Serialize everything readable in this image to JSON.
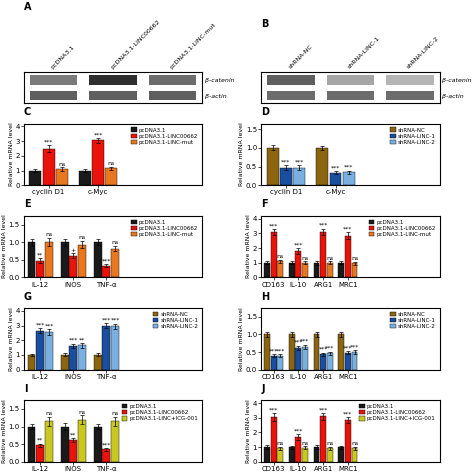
{
  "chart_data": [
    {
      "type": "heatmap",
      "title": "A",
      "x": [
        "pcDNA3.1",
        "pcDNA3.1-LINC00662",
        "pcDNA3.1-LINC-mut"
      ],
      "y": [
        "β-catenin",
        "β-actin"
      ],
      "values": [
        [
          0.6,
          0.85,
          0.65
        ],
        [
          0.7,
          0.7,
          0.7
        ]
      ]
    },
    {
      "type": "heatmap",
      "title": "B",
      "x": [
        "shRNA-NC",
        "shRNA-LINC-1",
        "shRNA-LINC-2"
      ],
      "y": [
        "β-catenin",
        "β-actin"
      ],
      "values": [
        [
          0.7,
          0.45,
          0.4
        ],
        [
          0.65,
          0.65,
          0.65
        ]
      ]
    },
    {
      "type": "bar",
      "title": "C",
      "ylabel": "Relative mRNA level",
      "categories": [
        "cyclin D1",
        "c-Myc"
      ],
      "series": [
        {
          "name": "pcDNA3.1",
          "color": "#1a1a1a",
          "values": [
            1.0,
            1.0
          ],
          "errors": [
            0.08,
            0.08
          ]
        },
        {
          "name": "pcDNA3.1-LINC00662",
          "color": "#e8130a",
          "values": [
            2.5,
            3.05
          ],
          "errors": [
            0.25,
            0.18
          ],
          "annotations": [
            "***",
            "***"
          ]
        },
        {
          "name": "pcDNA3.1-LINC-mut",
          "color": "#e87820",
          "values": [
            1.1,
            1.15
          ],
          "errors": [
            0.12,
            0.12
          ],
          "annotations": [
            "ns",
            "ns"
          ]
        }
      ],
      "ylim": [
        0,
        4.2
      ],
      "yticks": [
        0,
        1,
        2,
        3,
        4
      ],
      "legend": "upper right"
    },
    {
      "type": "bar",
      "title": "D",
      "ylabel": "Relative mRNA level",
      "categories": [
        "cyclin D1",
        "c-Myc"
      ],
      "series": [
        {
          "name": "shRNA-NC",
          "color": "#8B6510",
          "values": [
            1.0,
            1.0
          ],
          "errors": [
            0.07,
            0.06
          ]
        },
        {
          "name": "shRNA-LINC-1",
          "color": "#1a4fa0",
          "values": [
            0.47,
            0.33
          ],
          "errors": [
            0.06,
            0.04
          ],
          "annotations": [
            "***",
            "***"
          ]
        },
        {
          "name": "shRNA-LINC-2",
          "color": "#7ab0e0",
          "values": [
            0.47,
            0.35
          ],
          "errors": [
            0.06,
            0.04
          ],
          "annotations": [
            "***",
            "***"
          ]
        }
      ],
      "ylim": [
        0,
        1.65
      ],
      "yticks": [
        {
          "value": 0,
          "label": "0.0"
        },
        0.5,
        {
          "value": 1,
          "label": "1.0"
        },
        1.5
      ],
      "legend": "upper right"
    },
    {
      "type": "bar",
      "title": "E",
      "ylabel": "Relative mRNA level",
      "categories": [
        "IL-12",
        "iNOS",
        "TNF-α"
      ],
      "series": [
        {
          "name": "pcDNA3.1",
          "color": "#1a1a1a",
          "values": [
            1.0,
            1.0,
            1.0
          ],
          "errors": [
            0.1,
            0.1,
            0.08
          ]
        },
        {
          "name": "pcDNA3.1-LINC00662",
          "color": "#e8130a",
          "values": [
            0.48,
            0.62,
            0.33
          ],
          "errors": [
            0.06,
            0.06,
            0.04
          ],
          "annotations": [
            "**",
            "+",
            "***"
          ]
        },
        {
          "name": "pcDNA3.1-LINC-mut",
          "color": "#e87820",
          "values": [
            1.0,
            0.93,
            0.82
          ],
          "errors": [
            0.12,
            0.1,
            0.08
          ],
          "annotations": [
            "ns",
            "ns",
            "ns"
          ]
        }
      ],
      "ylim": [
        0,
        1.75
      ],
      "yticks": [
        {
          "value": 0,
          "label": "0.0"
        },
        0.5,
        {
          "value": 1,
          "label": "1.0"
        },
        1.5
      ],
      "legend": "upper right"
    },
    {
      "type": "bar",
      "title": "F",
      "ylabel": "Relative mRNA level",
      "categories": [
        "CD163",
        "IL-10",
        "ARG1",
        "MRC1"
      ],
      "series": [
        {
          "name": "pcDNA3.1",
          "color": "#1a1a1a",
          "values": [
            1.0,
            1.0,
            1.0,
            1.0
          ],
          "errors": [
            0.1,
            0.1,
            0.12,
            0.1
          ]
        },
        {
          "name": "pcDNA3.1-LINC00662",
          "color": "#e8130a",
          "values": [
            3.1,
            1.8,
            3.1,
            2.85
          ],
          "errors": [
            0.2,
            0.2,
            0.22,
            0.22
          ],
          "annotations": [
            "***",
            "***",
            "***",
            "***"
          ]
        },
        {
          "name": "pcDNA3.1-LINC-mut",
          "color": "#e87820",
          "values": [
            1.1,
            1.0,
            1.0,
            0.95
          ],
          "errors": [
            0.12,
            0.1,
            0.1,
            0.1
          ],
          "annotations": [
            "ns",
            "ns",
            "ns",
            "ns"
          ]
        }
      ],
      "ylim": [
        0,
        4.2
      ],
      "yticks": [
        0,
        1,
        2,
        3,
        4
      ],
      "legend": "upper right"
    },
    {
      "type": "bar",
      "title": "G",
      "ylabel": "Relative mRNA level",
      "categories": [
        "IL-12",
        "iNOS",
        "TNF-α"
      ],
      "series": [
        {
          "name": "shRNA-NC",
          "color": "#8B6510",
          "values": [
            1.0,
            1.0,
            1.0
          ],
          "errors": [
            0.08,
            0.1,
            0.1
          ]
        },
        {
          "name": "shRNA-LINC-1",
          "color": "#1a4fa0",
          "values": [
            2.65,
            1.62,
            3.0
          ],
          "errors": [
            0.18,
            0.15,
            0.18
          ],
          "annotations": [
            "***",
            "***",
            "***"
          ]
        },
        {
          "name": "shRNA-LINC-2",
          "color": "#7ab0e0",
          "values": [
            2.55,
            1.65,
            2.95
          ],
          "errors": [
            0.2,
            0.15,
            0.18
          ],
          "annotations": [
            "***",
            "**",
            "***"
          ]
        }
      ],
      "ylim": [
        0,
        4.2
      ],
      "yticks": [
        0,
        1,
        2,
        3,
        4
      ],
      "legend": "upper right"
    },
    {
      "type": "bar",
      "title": "H",
      "ylabel": "Relative mRNA level",
      "categories": [
        "CD163",
        "IL-10",
        "ARG1",
        "MRC1"
      ],
      "series": [
        {
          "name": "shRNA-NC",
          "color": "#8B6510",
          "values": [
            1.0,
            1.0,
            1.0,
            1.0
          ],
          "errors": [
            0.08,
            0.08,
            0.06,
            0.07
          ]
        },
        {
          "name": "shRNA-LINC-1",
          "color": "#1a4fa0",
          "values": [
            0.4,
            0.62,
            0.43,
            0.48
          ],
          "errors": [
            0.04,
            0.06,
            0.05,
            0.05
          ],
          "annotations": [
            "***",
            "***",
            "***",
            "***"
          ]
        },
        {
          "name": "shRNA-LINC-2",
          "color": "#7ab0e0",
          "values": [
            0.4,
            0.65,
            0.46,
            0.5
          ],
          "errors": [
            0.04,
            0.06,
            0.05,
            0.05
          ],
          "annotations": [
            "***",
            "***",
            "***",
            "***"
          ]
        }
      ],
      "ylim": [
        0,
        1.75
      ],
      "yticks": [
        {
          "value": 0,
          "label": "0.0"
        },
        0.5,
        {
          "value": 1,
          "label": "1.0"
        },
        1.5
      ],
      "legend": "upper right"
    },
    {
      "type": "bar",
      "title": "I",
      "ylabel": "Relative mRNA level",
      "categories": [
        "IL-12",
        "iNOS",
        "TNF-α"
      ],
      "series": [
        {
          "name": "pcDNA3.1",
          "color": "#1a1a1a",
          "values": [
            1.0,
            1.0,
            1.0
          ],
          "errors": [
            0.08,
            0.09,
            0.08
          ]
        },
        {
          "name": "pcDNA3.1-LINC00662",
          "color": "#e8130a",
          "values": [
            0.47,
            0.62,
            0.35
          ],
          "errors": [
            0.05,
            0.06,
            0.04
          ],
          "annotations": [
            "**",
            "**",
            "***"
          ]
        },
        {
          "name": "pcDNA3.1-LINC+ICG-001",
          "color": "#c8c820",
          "values": [
            1.15,
            1.2,
            1.15
          ],
          "errors": [
            0.12,
            0.12,
            0.12
          ],
          "annotations": [
            "ns",
            "ns",
            "ns"
          ]
        }
      ],
      "ylim": [
        0,
        1.75
      ],
      "yticks": [
        {
          "value": 0,
          "label": "0.0"
        },
        0.5,
        {
          "value": 1,
          "label": "1.0"
        },
        1.5
      ],
      "legend": "upper right"
    },
    {
      "type": "bar",
      "title": "J",
      "ylabel": "Relative mRNA level",
      "categories": [
        "CD163",
        "IL-10",
        "ARG1",
        "MRC1"
      ],
      "series": [
        {
          "name": "pcDNA3.1",
          "color": "#1a1a1a",
          "values": [
            1.0,
            1.0,
            1.0,
            1.0
          ],
          "errors": [
            0.12,
            0.1,
            0.12,
            0.1
          ]
        },
        {
          "name": "pcDNA3.1-LINC00662",
          "color": "#e8130a",
          "values": [
            3.05,
            1.7,
            3.1,
            2.82
          ],
          "errors": [
            0.25,
            0.2,
            0.22,
            0.2
          ],
          "annotations": [
            "***",
            "***",
            "***",
            "***"
          ]
        },
        {
          "name": "pcDNA3.1-LINC+ICG-001",
          "color": "#c8c820",
          "values": [
            0.92,
            0.95,
            0.93,
            0.92
          ],
          "errors": [
            0.1,
            0.1,
            0.1,
            0.1
          ],
          "annotations": [
            "ns",
            "ns",
            "ns",
            "ns"
          ]
        }
      ],
      "ylim": [
        0,
        4.2
      ],
      "yticks": [
        0,
        1,
        2,
        3,
        4
      ],
      "legend": "upper right"
    }
  ]
}
